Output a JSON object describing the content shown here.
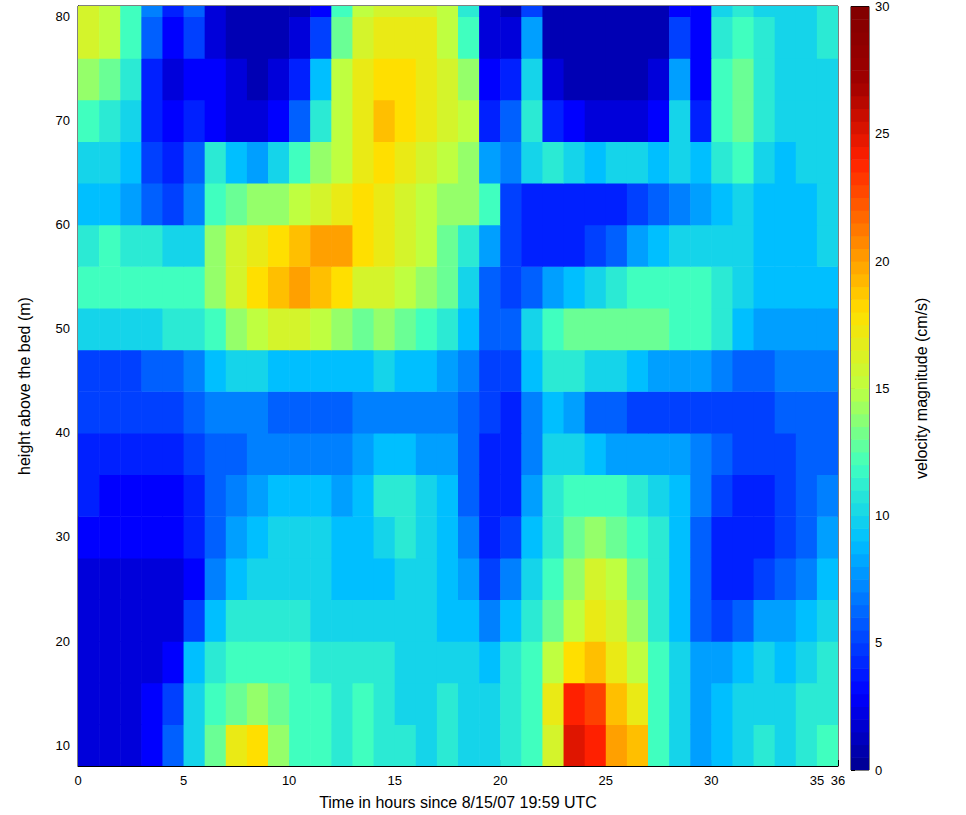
{
  "chart_data": {
    "type": "heatmap",
    "x_label": "Time in hours since 8/15/07 19:59 UTC",
    "y_label": "height above the bed (m)",
    "xlim": [
      0,
      36
    ],
    "ylim": [
      8,
      81
    ],
    "xticks": [
      0,
      5,
      10,
      15,
      20,
      25,
      30,
      35
    ],
    "yticks": [
      10,
      20,
      30,
      40,
      50,
      60,
      70,
      80
    ],
    "grid": false,
    "x": [
      0.5,
      1.5,
      2.5,
      3.5,
      4.5,
      5.5,
      6.5,
      7.5,
      8.5,
      9.5,
      10.5,
      11.5,
      12.5,
      13.5,
      14.5,
      15.5,
      16.5,
      17.5,
      18.5,
      19.5,
      20.5,
      21.5,
      22.5,
      23.5,
      24.5,
      25.5,
      26.5,
      27.5,
      28.5,
      29.5,
      30.5,
      31.5,
      32.5,
      33.5,
      34.5,
      35.5
    ],
    "y": [
      10,
      14,
      18,
      22,
      26,
      30,
      34,
      38,
      42,
      46,
      50,
      54,
      58,
      62,
      66,
      70,
      74,
      78,
      82
    ],
    "values": [
      [
        2,
        2,
        2,
        3,
        6,
        10,
        13,
        17,
        18,
        14,
        12,
        12,
        11,
        12,
        11,
        11,
        10,
        11,
        10,
        10,
        11,
        12,
        16,
        25,
        24,
        20,
        19,
        12,
        10,
        8,
        9,
        10,
        11,
        10,
        11,
        12
      ],
      [
        2,
        2,
        2,
        3,
        5,
        10,
        12,
        13,
        14,
        13,
        12,
        12,
        11,
        12,
        11,
        10,
        10,
        11,
        10,
        10,
        11,
        12,
        17,
        24,
        23,
        19,
        17,
        12,
        10,
        8,
        9,
        10,
        10,
        10,
        11,
        11
      ],
      [
        2,
        2,
        2,
        2,
        3,
        9,
        11,
        12,
        12,
        12,
        12,
        11,
        11,
        11,
        11,
        10,
        10,
        10,
        10,
        9,
        11,
        12,
        15,
        18,
        19,
        17,
        15,
        12,
        10,
        8,
        8,
        9,
        10,
        9,
        10,
        11
      ],
      [
        2,
        2,
        2,
        2,
        2,
        5,
        9,
        11,
        11,
        11,
        11,
        10,
        10,
        10,
        10,
        10,
        10,
        9,
        9,
        7,
        9,
        11,
        13,
        15,
        17,
        16,
        14,
        11,
        9,
        6,
        5,
        6,
        8,
        8,
        9,
        10
      ],
      [
        2,
        2,
        2,
        2,
        2,
        3,
        7,
        9,
        10,
        10,
        10,
        10,
        9,
        9,
        9,
        10,
        10,
        9,
        8,
        5,
        7,
        10,
        12,
        14,
        16,
        15,
        13,
        11,
        9,
        6,
        4,
        4,
        5,
        6,
        7,
        9
      ],
      [
        3,
        3,
        3,
        3,
        3,
        4,
        6,
        8,
        9,
        10,
        10,
        10,
        9,
        9,
        10,
        11,
        10,
        9,
        7,
        4,
        5,
        9,
        11,
        13,
        14,
        13,
        12,
        11,
        9,
        6,
        4,
        4,
        4,
        5,
        6,
        8
      ],
      [
        4,
        3,
        3,
        3,
        3,
        4,
        6,
        7,
        8,
        9,
        9,
        9,
        8,
        9,
        11,
        11,
        10,
        9,
        6,
        4,
        4,
        8,
        11,
        12,
        12,
        12,
        11,
        10,
        9,
        7,
        5,
        4,
        4,
        5,
        6,
        7
      ],
      [
        4,
        4,
        4,
        4,
        4,
        5,
        6,
        6,
        7,
        7,
        7,
        7,
        7,
        8,
        9,
        9,
        8,
        8,
        6,
        4,
        4,
        7,
        10,
        10,
        9,
        8,
        8,
        8,
        8,
        7,
        6,
        5,
        5,
        5,
        6,
        6
      ],
      [
        5,
        5,
        5,
        5,
        5,
        6,
        7,
        7,
        7,
        6,
        6,
        6,
        6,
        7,
        7,
        7,
        7,
        7,
        6,
        5,
        4,
        7,
        9,
        8,
        6,
        6,
        5,
        5,
        5,
        5,
        5,
        5,
        5,
        6,
        6,
        6
      ],
      [
        5,
        5,
        5,
        6,
        6,
        7,
        9,
        10,
        10,
        9,
        9,
        9,
        9,
        9,
        10,
        9,
        9,
        8,
        7,
        5,
        5,
        9,
        11,
        11,
        10,
        10,
        9,
        8,
        8,
        8,
        7,
        6,
        6,
        7,
        7,
        7
      ],
      [
        10,
        10,
        10,
        10,
        11,
        11,
        12,
        14,
        15,
        16,
        16,
        15,
        14,
        13,
        14,
        13,
        12,
        11,
        9,
        6,
        6,
        10,
        12,
        13,
        13,
        13,
        13,
        13,
        12,
        12,
        11,
        9,
        8,
        8,
        8,
        8
      ],
      [
        12,
        12,
        12,
        12,
        12,
        12,
        14,
        16,
        18,
        19,
        20,
        19,
        18,
        16,
        16,
        15,
        14,
        13,
        10,
        6,
        5,
        6,
        8,
        9,
        10,
        11,
        12,
        12,
        12,
        12,
        11,
        10,
        9,
        9,
        9,
        9
      ],
      [
        11,
        12,
        11,
        11,
        10,
        10,
        14,
        16,
        17,
        18,
        19,
        20,
        20,
        18,
        17,
        16,
        15,
        13,
        11,
        8,
        5,
        4,
        4,
        4,
        5,
        6,
        8,
        9,
        10,
        10,
        10,
        10,
        9,
        9,
        9,
        10
      ],
      [
        9,
        9,
        8,
        6,
        5,
        7,
        12,
        13,
        14,
        14,
        15,
        16,
        17,
        18,
        17,
        16,
        15,
        14,
        14,
        12,
        5,
        4,
        4,
        4,
        4,
        4,
        5,
        6,
        7,
        8,
        9,
        10,
        9,
        9,
        9,
        10
      ],
      [
        10,
        10,
        9,
        5,
        4,
        6,
        11,
        9,
        8,
        10,
        12,
        14,
        15,
        17,
        18,
        17,
        16,
        15,
        14,
        8,
        7,
        10,
        11,
        10,
        9,
        10,
        10,
        9,
        10,
        9,
        11,
        12,
        10,
        9,
        10,
        10
      ],
      [
        12,
        11,
        10,
        4,
        3,
        4,
        3,
        2,
        2,
        3,
        6,
        11,
        15,
        17,
        19,
        18,
        17,
        16,
        15,
        4,
        6,
        11,
        4,
        3,
        2,
        2,
        2,
        3,
        10,
        4,
        12,
        13,
        11,
        10,
        10,
        10
      ],
      [
        14,
        13,
        11,
        4,
        2,
        3,
        3,
        2,
        1,
        2,
        4,
        9,
        15,
        17,
        18,
        18,
        17,
        16,
        14,
        3,
        4,
        10,
        2,
        1,
        1,
        1,
        1,
        2,
        8,
        3,
        12,
        13,
        11,
        10,
        10,
        10
      ],
      [
        16,
        15,
        12,
        6,
        3,
        5,
        2,
        1,
        1,
        1,
        2,
        5,
        13,
        16,
        17,
        17,
        17,
        15,
        12,
        2,
        2,
        8,
        1,
        1,
        1,
        1,
        1,
        1,
        5,
        3,
        11,
        12,
        11,
        10,
        10,
        11
      ],
      [
        16,
        15,
        12,
        7,
        4,
        6,
        2,
        1,
        1,
        1,
        1,
        3,
        12,
        15,
        16,
        16,
        16,
        15,
        11,
        2,
        1,
        5,
        1,
        1,
        1,
        1,
        1,
        1,
        3,
        3,
        10,
        11,
        10,
        10,
        10,
        11
      ]
    ],
    "colorbar": {
      "label": "velocity magnitude (cm/s)",
      "range": [
        0,
        30
      ],
      "ticks": [
        0,
        5,
        10,
        15,
        20,
        25,
        30
      ]
    }
  }
}
